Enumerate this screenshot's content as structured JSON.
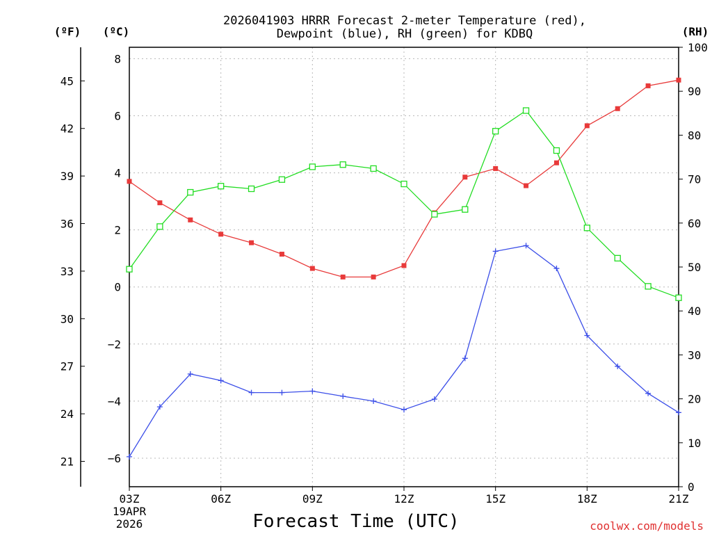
{
  "chart_data": {
    "type": "line",
    "title_line1": "2026041903 HRRR Forecast 2-meter Temperature (red),",
    "title_line2": "Dewpoint (blue), RH (green) for KDBQ",
    "xlabel": "Forecast Time (UTC)",
    "x_tick_labels": [
      "03Z",
      "06Z",
      "09Z",
      "12Z",
      "15Z",
      "18Z",
      "21Z"
    ],
    "x_date_label": [
      "19APR",
      "2026"
    ],
    "x_range_hours": [
      3,
      21
    ],
    "left_unit_f": "(ºF)",
    "left_unit_c": "(ºC)",
    "right_unit": "(RH)",
    "ylim_c": [
      -7,
      8.4
    ],
    "ylim_rh": [
      0,
      100
    ],
    "y_ticks_c": [
      "-6",
      "-4",
      "-2",
      "0",
      "2",
      "4",
      "6",
      "8"
    ],
    "y_ticks_f": [
      "21",
      "24",
      "27",
      "30",
      "33",
      "36",
      "39",
      "42",
      "45"
    ],
    "y_ticks_rh": [
      "0",
      "10",
      "20",
      "30",
      "40",
      "50",
      "60",
      "70",
      "80",
      "90",
      "100"
    ],
    "hours": [
      3,
      4,
      5,
      6,
      7,
      8,
      9,
      10,
      11,
      12,
      13,
      14,
      15,
      16,
      17,
      18,
      19,
      20,
      21
    ],
    "series": [
      {
        "name": "Temperature",
        "unit": "C",
        "color": "#e83a3a",
        "marker": "filled-square",
        "values": [
          3.7,
          2.95,
          2.35,
          1.85,
          1.55,
          1.15,
          0.65,
          0.35,
          0.35,
          0.75,
          2.6,
          3.85,
          4.15,
          3.55,
          4.35,
          5.65,
          6.25,
          7.05,
          7.25
        ]
      },
      {
        "name": "Dewpoint",
        "unit": "C",
        "color": "#3b4ee8",
        "marker": "plus",
        "values": [
          -5.95,
          -4.2,
          -3.05,
          -3.28,
          -3.7,
          -3.7,
          -3.65,
          -3.83,
          -4.0,
          -4.3,
          -3.93,
          -2.5,
          1.25,
          1.45,
          0.65,
          -1.7,
          -2.78,
          -3.73,
          -4.4
        ]
      },
      {
        "name": "RH",
        "unit": "%",
        "color": "#22dd22",
        "marker": "open-square",
        "values": [
          49.5,
          59.2,
          67.0,
          68.4,
          67.8,
          69.9,
          72.8,
          73.3,
          72.4,
          68.9,
          62.0,
          63.1,
          80.9,
          85.6,
          76.5,
          58.9,
          52.0,
          45.6,
          43.0
        ]
      }
    ]
  },
  "credit": "coolwx.com/models"
}
